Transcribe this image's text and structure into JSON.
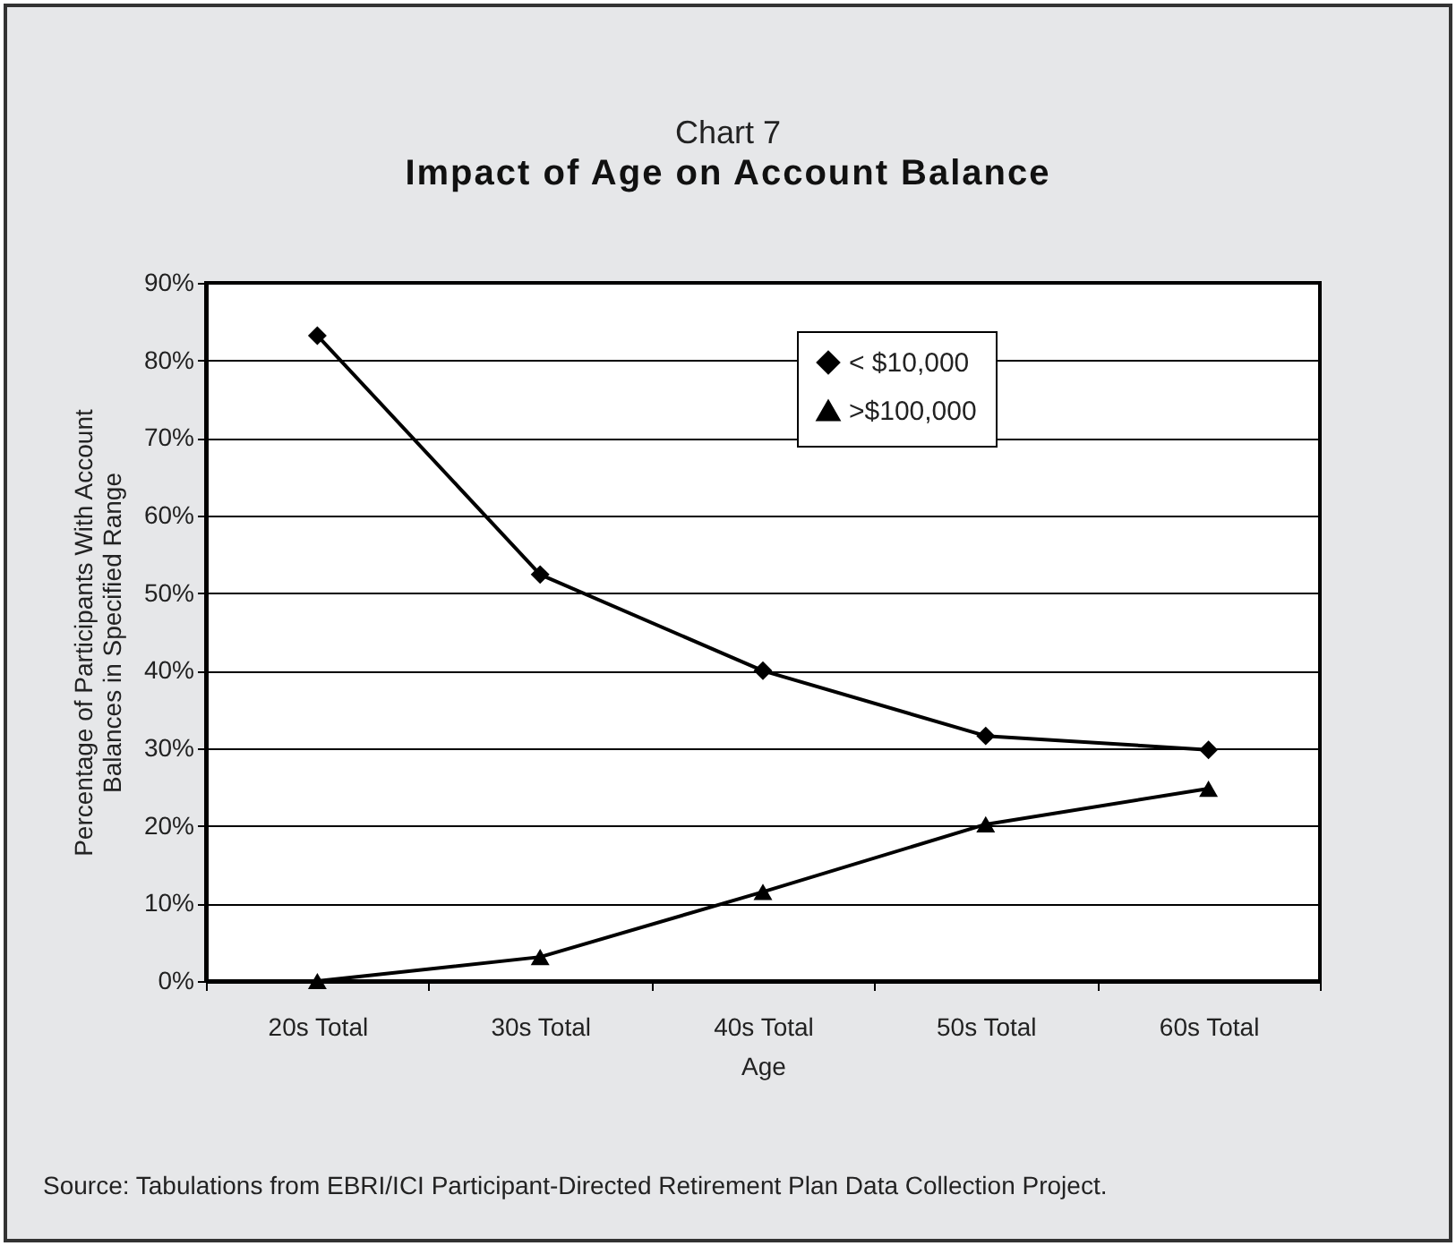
{
  "chart_data": {
    "type": "line",
    "subtitle": "Chart 7",
    "title": "Impact of Age on Account Balance",
    "xlabel": "Age",
    "ylabel": "Percentage of Participants With Account Balances in Specified Range",
    "annotations": [
      "Source: Tabulations from EBRI/ICI Participant-Directed Retirement Plan Data Collection Project."
    ],
    "categories": [
      "20s Total",
      "30s Total",
      "40s Total",
      "50s Total",
      "60s Total"
    ],
    "series": [
      {
        "name": "<  $10,000",
        "color": "#000000",
        "marker": "diamond",
        "values": [
          83.2,
          52.4,
          40.0,
          31.6,
          29.8
        ]
      },
      {
        "name": ">$100,000",
        "color": "#000000",
        "marker": "triangle",
        "values": [
          0,
          3.1,
          11.5,
          20.2,
          24.8
        ]
      }
    ],
    "ylim": [
      0,
      90
    ],
    "yticks": [
      {
        "value": 0,
        "label": "0%"
      },
      {
        "value": 10,
        "label": "10%"
      },
      {
        "value": 20,
        "label": "20%"
      },
      {
        "value": 30,
        "label": "30%"
      },
      {
        "value": 40,
        "label": "40%"
      },
      {
        "value": 50,
        "label": "50%"
      },
      {
        "value": 60,
        "label": "60%"
      },
      {
        "value": 70,
        "label": "70%"
      },
      {
        "value": 80,
        "label": "80%"
      },
      {
        "value": 90,
        "label": "90%"
      }
    ],
    "grid": "y",
    "legend": "top right",
    "line_style": "solid"
  }
}
